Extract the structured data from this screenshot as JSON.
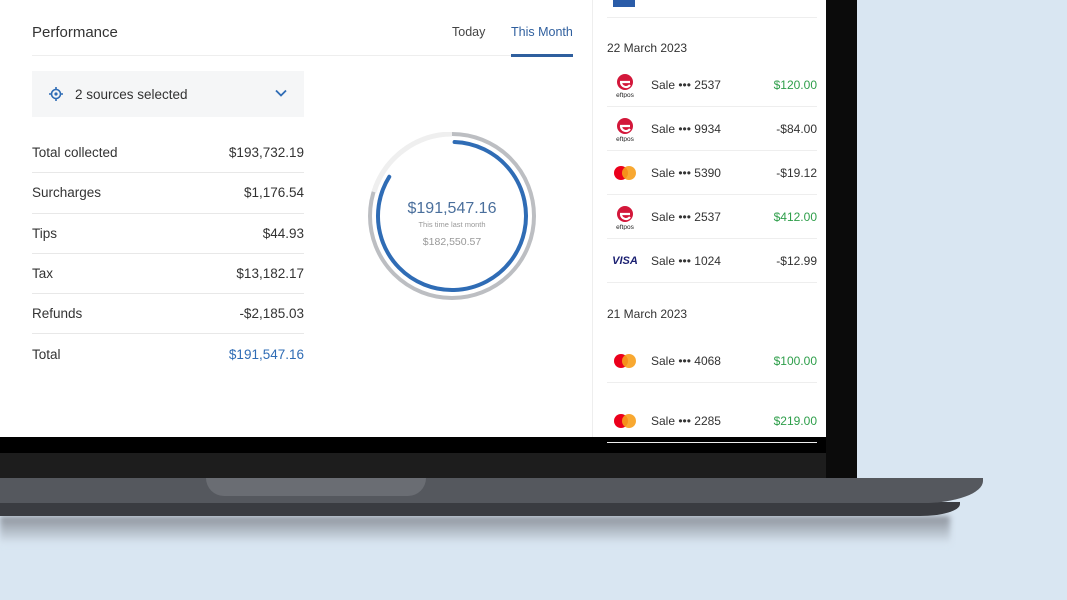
{
  "performance": {
    "title": "Performance",
    "tabs": [
      "Today",
      "This Month"
    ],
    "active_tab": "This Month",
    "sources_label": "2 sources selected",
    "rows": [
      {
        "label": "Total collected",
        "value": "$193,732.19"
      },
      {
        "label": "Surcharges",
        "value": "$1,176.54"
      },
      {
        "label": "Tips",
        "value": "$44.93"
      },
      {
        "label": "Tax",
        "value": "$13,182.17"
      },
      {
        "label": "Refunds",
        "value": "-$2,185.03"
      },
      {
        "label": "Total",
        "value": "$191,547.16"
      }
    ],
    "ring": {
      "value": "$191,547.16",
      "caption": "This time last month",
      "previous": "$182,550.57",
      "accent": "#2f6cb5"
    }
  },
  "transactions": {
    "groups": [
      {
        "date": "22 March 2023",
        "items": [
          {
            "brand": "eftpos",
            "label": "Sale ••• 2537",
            "amount": "$120.00",
            "positive": true
          },
          {
            "brand": "eftpos",
            "label": "Sale ••• 9934",
            "amount": "-$84.00",
            "positive": false
          },
          {
            "brand": "mastercard",
            "label": "Sale ••• 5390",
            "amount": "-$19.12",
            "positive": false
          },
          {
            "brand": "eftpos",
            "label": "Sale ••• 2537",
            "amount": "$412.00",
            "positive": true
          },
          {
            "brand": "visa",
            "label": "Sale ••• 1024",
            "amount": "-$12.99",
            "positive": false
          }
        ]
      },
      {
        "date": "21 March 2023",
        "items": [
          {
            "brand": "mastercard",
            "label": "Sale ••• 4068",
            "amount": "$100.00",
            "positive": true
          },
          {
            "brand": "mastercard",
            "label": "Sale ••• 2285",
            "amount": "$219.00",
            "positive": true
          }
        ]
      }
    ]
  },
  "brand_text": {
    "eftpos": "eftpos",
    "visa": "VISA"
  }
}
